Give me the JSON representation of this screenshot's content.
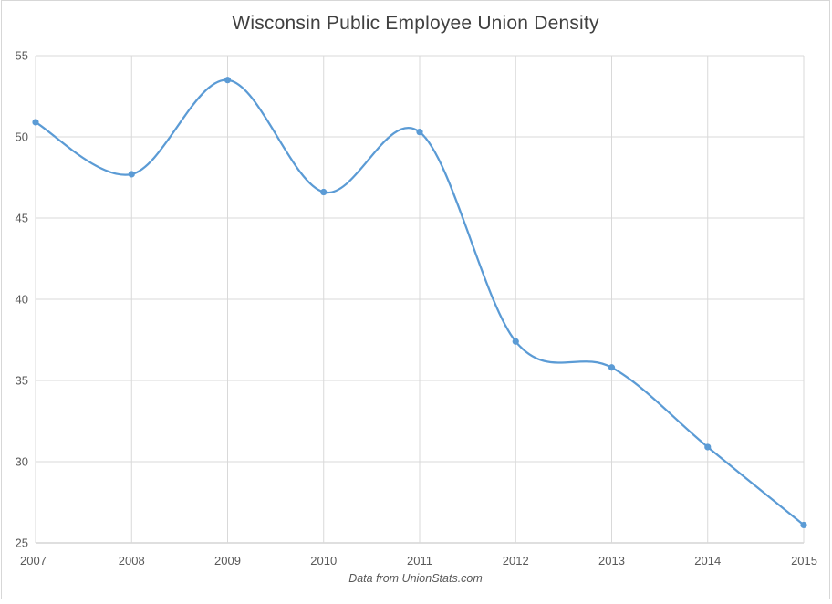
{
  "chart_data": {
    "type": "line",
    "title": "Wisconsin Public Employee Union Density",
    "footnote": "Data from UnionStats.com",
    "categories": [
      "2007",
      "2008",
      "2009",
      "2010",
      "2011",
      "2012",
      "2013",
      "2014",
      "2015"
    ],
    "values": [
      50.9,
      47.7,
      53.5,
      46.6,
      50.3,
      37.4,
      35.8,
      30.9,
      26.1
    ],
    "xlabel": "",
    "ylabel": "",
    "ylim": [
      25,
      55
    ],
    "ytick_interval": 5,
    "yticks": [
      25,
      30,
      35,
      40,
      45,
      50,
      55
    ],
    "grid": "both",
    "smooth": true,
    "legend": "none",
    "marker": "circle",
    "colors": {
      "line": "#5b9bd5",
      "marker": "#5b9bd5",
      "gridline": "#d9d9d9",
      "axis_line": "#bfbfbf",
      "tick_label": "#595959",
      "title": "#404040",
      "footnote": "#595959",
      "background": "#ffffff"
    }
  }
}
